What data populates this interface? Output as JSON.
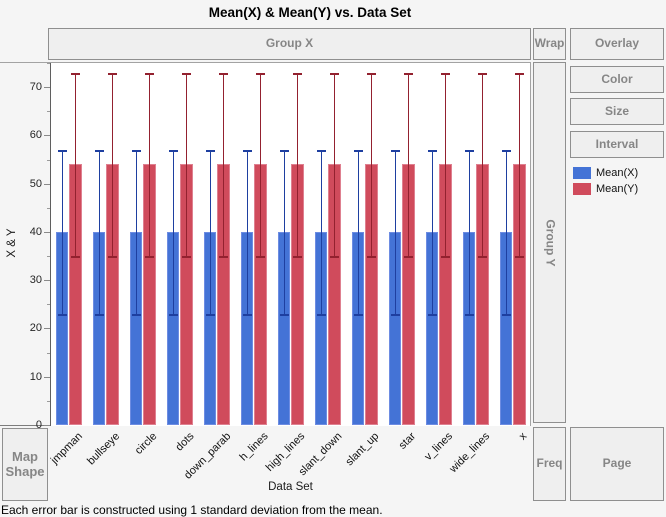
{
  "window": {
    "title": "Mean(X) & Mean(Y) vs. Data Set"
  },
  "zones": {
    "group_x": "Group X",
    "wrap": "Wrap",
    "overlay": "Overlay",
    "color": "Color",
    "size": "Size",
    "interval": "Interval",
    "group_y": "Group Y",
    "freq": "Freq",
    "page": "Page",
    "map_shape": "Map Shape"
  },
  "axes": {
    "y_label": "X & Y",
    "x_label": "Data Set"
  },
  "legend": {
    "items": [
      {
        "label": "Mean(X)",
        "color": "#4473d6"
      },
      {
        "label": "Mean(Y)",
        "color": "#d04b5c"
      }
    ]
  },
  "footnote": "Each error bar is constructed using 1 standard deviation from the mean.",
  "chart_data": {
    "type": "bar",
    "title": "Mean(X) & Mean(Y) vs. Data Set",
    "xlabel": "Data Set",
    "ylabel": "X & Y",
    "ylim": [
      0,
      75
    ],
    "yticks": [
      0,
      10,
      20,
      30,
      40,
      50,
      60,
      70
    ],
    "minor_tick_step": 5,
    "grid": false,
    "legend_position": "right",
    "error_bar_rule": "1 standard deviation from the mean",
    "categories": [
      "jmpman",
      "bullseye",
      "circle",
      "dots",
      "down_parab",
      "h_lines",
      "high_lines",
      "slant_down",
      "slant_up",
      "star",
      "v_lines",
      "wide_lines",
      "x"
    ],
    "series": [
      {
        "name": "Mean(X)",
        "color": "#4473d6",
        "edge_color": "#6d8ce2",
        "stem_color": "#1e3fa0",
        "values": [
          40,
          40,
          40,
          40,
          40,
          40,
          40,
          40,
          40,
          40,
          40,
          40,
          40
        ],
        "error_low": [
          23,
          23,
          23,
          23,
          23,
          23,
          23,
          23,
          23,
          23,
          23,
          23,
          23
        ],
        "error_high": [
          57,
          57,
          57,
          57,
          57,
          57,
          57,
          57,
          57,
          57,
          57,
          57,
          57
        ]
      },
      {
        "name": "Mean(Y)",
        "color": "#d04b5c",
        "edge_color": "#df8090",
        "stem_color": "#93212f",
        "values": [
          54,
          54,
          54,
          54,
          54,
          54,
          54,
          54,
          54,
          54,
          54,
          54,
          54
        ],
        "error_low": [
          35,
          35,
          35,
          35,
          35,
          35,
          35,
          35,
          35,
          35,
          35,
          35,
          35
        ],
        "error_high": [
          73,
          73,
          73,
          73,
          73,
          73,
          73,
          73,
          73,
          73,
          73,
          73,
          73
        ]
      }
    ]
  }
}
